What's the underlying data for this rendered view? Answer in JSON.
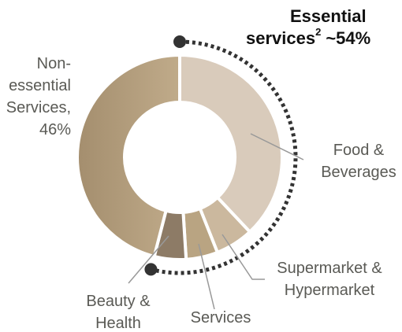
{
  "chart_data": {
    "type": "donut",
    "categories": [
      [
        "Food &",
        "Beverages"
      ],
      [
        "Supermarket &",
        "Hypermarket"
      ],
      [
        "Services"
      ],
      [
        "Beauty &",
        "Health"
      ],
      [
        "Non-",
        "essential",
        "Services,"
      ]
    ],
    "values": [
      38,
      6,
      5,
      5,
      46
    ],
    "value_labels": [
      null,
      null,
      null,
      null,
      "46%"
    ],
    "colors": [
      "#d9cbbb",
      "#cbb89e",
      "#b9a482",
      "#8d7b66",
      "#b39e7c"
    ],
    "annotation": {
      "lines": [
        "Essential",
        "services"
      ],
      "superscript": "2",
      "value_label": "~54%"
    }
  }
}
